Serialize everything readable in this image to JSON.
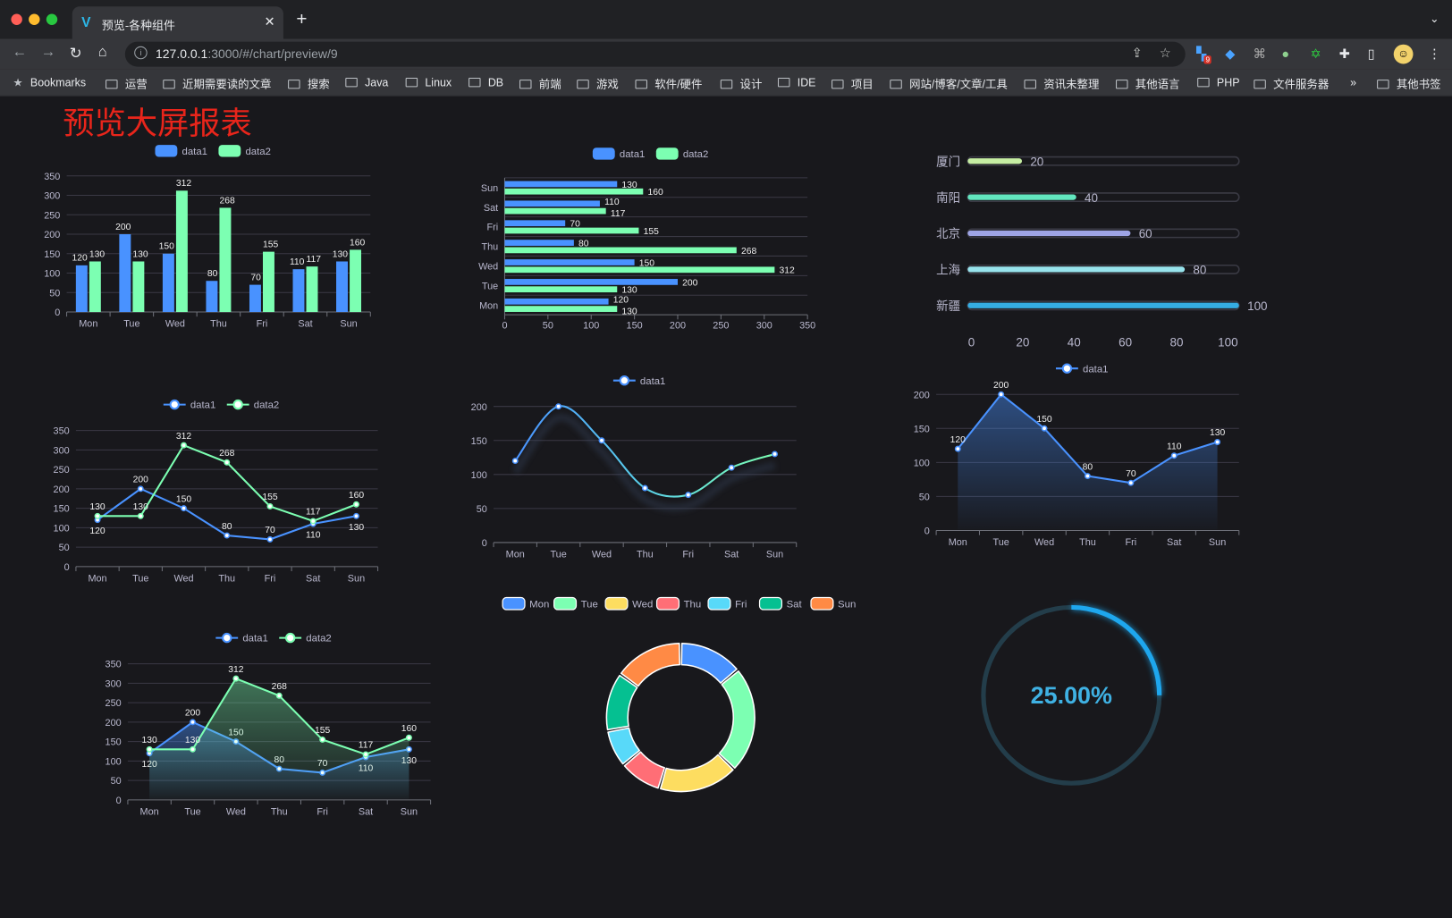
{
  "browser": {
    "tab_title": "预览-各种组件",
    "url_host": "127.0.0.1",
    "url_rest": ":3000/#/chart/preview/9",
    "extension_badge": "9",
    "bookmarks_label": "Bookmarks",
    "bookmarks": [
      "运营",
      "近期需要读的文章",
      "搜索",
      "Java",
      "Linux",
      "DB",
      "前端",
      "游戏",
      "软件/硬件",
      "设计",
      "IDE",
      "项目",
      "网站/博客/文章/工具",
      "资讯未整理",
      "其他语言",
      "PHP",
      "文件服务器"
    ],
    "overflow": "»",
    "other_bookmarks": "其他书签"
  },
  "page": {
    "title": "预览大屏报表"
  },
  "colors": {
    "data1": "#4992ff",
    "data2": "#7cffb2",
    "title": "#e8251b",
    "gauge": "#1ea7ee"
  },
  "chart_data": [
    {
      "type": "bar",
      "legend_position": "top",
      "categories": [
        "Mon",
        "Tue",
        "Wed",
        "Thu",
        "Fri",
        "Sat",
        "Sun"
      ],
      "series": [
        {
          "name": "data1",
          "values": [
            120,
            200,
            150,
            80,
            70,
            110,
            130
          ]
        },
        {
          "name": "data2",
          "values": [
            130,
            130,
            312,
            268,
            155,
            117,
            160
          ]
        }
      ],
      "ylim": [
        0,
        350
      ],
      "yticks": [
        0,
        50,
        100,
        150,
        200,
        250,
        300,
        350
      ],
      "data_labels": true,
      "grid": true
    },
    {
      "type": "bar",
      "orientation": "horizontal",
      "legend_position": "top",
      "categories": [
        "Mon",
        "Tue",
        "Wed",
        "Thu",
        "Fri",
        "Sat",
        "Sun"
      ],
      "series": [
        {
          "name": "data1",
          "values": [
            120,
            200,
            150,
            80,
            70,
            110,
            130
          ]
        },
        {
          "name": "data2",
          "values": [
            130,
            130,
            312,
            268,
            155,
            117,
            160
          ]
        }
      ],
      "xlim": [
        0,
        350
      ],
      "xticks": [
        0,
        50,
        100,
        150,
        200,
        250,
        300,
        350
      ],
      "data_labels": true,
      "grid": true
    },
    {
      "type": "bar",
      "orientation": "horizontal",
      "style": "progress",
      "categories": [
        "厦门",
        "南阳",
        "北京",
        "上海",
        "新疆"
      ],
      "values": [
        20,
        40,
        60,
        80,
        100
      ],
      "colors": [
        "#c6eea3",
        "#62e6bf",
        "#9ea4e6",
        "#97e3ec",
        "#35ade3"
      ],
      "xlim": [
        0,
        100
      ],
      "xticks": [
        0,
        20,
        40,
        60,
        80,
        100
      ],
      "data_labels": true
    },
    {
      "type": "line",
      "legend_position": "top",
      "categories": [
        "Mon",
        "Tue",
        "Wed",
        "Thu",
        "Fri",
        "Sat",
        "Sun"
      ],
      "series": [
        {
          "name": "data1",
          "values": [
            120,
            200,
            150,
            80,
            70,
            110,
            130
          ]
        },
        {
          "name": "data2",
          "values": [
            130,
            130,
            312,
            268,
            155,
            117,
            160
          ]
        }
      ],
      "ylim": [
        0,
        350
      ],
      "yticks": [
        0,
        50,
        100,
        150,
        200,
        250,
        300,
        350
      ],
      "data_labels": true,
      "grid": true
    },
    {
      "type": "line",
      "legend_position": "top",
      "categories": [
        "Mon",
        "Tue",
        "Wed",
        "Thu",
        "Fri",
        "Sat",
        "Sun"
      ],
      "series": [
        {
          "name": "data1",
          "values": [
            120,
            200,
            150,
            80,
            70,
            110,
            130
          ]
        }
      ],
      "ylim": [
        0,
        200
      ],
      "yticks": [
        0,
        50,
        100,
        150,
        200
      ],
      "data_labels": false,
      "grid": true,
      "gradient_line": true
    },
    {
      "type": "area",
      "legend_position": "top",
      "categories": [
        "Mon",
        "Tue",
        "Wed",
        "Thu",
        "Fri",
        "Sat",
        "Sun"
      ],
      "series": [
        {
          "name": "data1",
          "values": [
            120,
            200,
            150,
            80,
            70,
            110,
            130
          ]
        }
      ],
      "ylim": [
        0,
        200
      ],
      "yticks": [
        0,
        50,
        100,
        150,
        200
      ],
      "data_labels": true,
      "grid": true
    },
    {
      "type": "area",
      "legend_position": "top",
      "categories": [
        "Mon",
        "Tue",
        "Wed",
        "Thu",
        "Fri",
        "Sat",
        "Sun"
      ],
      "series": [
        {
          "name": "data1",
          "values": [
            120,
            200,
            150,
            80,
            70,
            110,
            130
          ]
        },
        {
          "name": "data2",
          "values": [
            130,
            130,
            312,
            268,
            155,
            117,
            160
          ]
        }
      ],
      "ylim": [
        0,
        350
      ],
      "yticks": [
        0,
        50,
        100,
        150,
        200,
        250,
        300,
        350
      ],
      "data_labels": true,
      "grid": true
    },
    {
      "type": "pie",
      "style": "donut",
      "legend_position": "top",
      "categories": [
        "Mon",
        "Tue",
        "Wed",
        "Thu",
        "Fri",
        "Sat",
        "Sun"
      ],
      "values": [
        120,
        200,
        150,
        80,
        70,
        110,
        130
      ],
      "colors": [
        "#4992ff",
        "#7cffb2",
        "#fddd60",
        "#ff6e76",
        "#58d9f9",
        "#05c091",
        "#ff8a45"
      ]
    },
    {
      "type": "gauge",
      "style": "progress-ring",
      "value": 25,
      "max": 100,
      "label": "25.00%"
    }
  ]
}
